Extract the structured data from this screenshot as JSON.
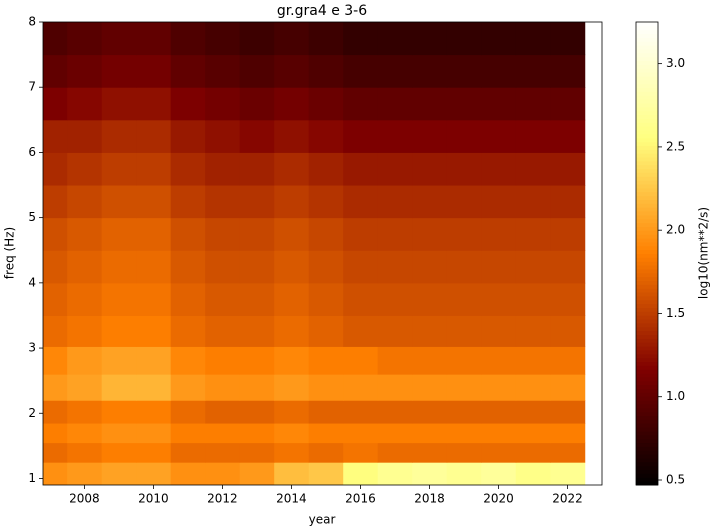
{
  "chart_data": {
    "type": "heatmap",
    "title": "gr.gra4 e 3-6",
    "x_label": "year",
    "y_label": "freq (Hz)",
    "colorbar_label": "log10(nm**2/s)",
    "colormap": "afmhot",
    "x": [
      2007,
      2008,
      2009,
      2010,
      2011,
      2012,
      2013,
      2014,
      2015,
      2016,
      2017,
      2018,
      2019,
      2020,
      2021,
      2022
    ],
    "y": [
      1.1,
      1.4,
      1.7,
      2.0,
      2.4,
      2.8,
      3.25,
      3.75,
      4.25,
      4.75,
      5.25,
      5.75,
      6.25,
      6.75,
      7.25,
      7.75
    ],
    "values": [
      [
        1.95,
        2.0,
        2.05,
        2.05,
        1.95,
        1.95,
        2.0,
        2.2,
        2.25,
        2.55,
        2.65,
        2.7,
        2.65,
        2.7,
        2.6,
        2.65
      ],
      [
        1.75,
        1.8,
        1.85,
        1.85,
        1.75,
        1.75,
        1.75,
        1.8,
        1.75,
        1.8,
        1.75,
        1.75,
        1.75,
        1.75,
        1.75,
        1.75
      ],
      [
        1.85,
        1.9,
        1.95,
        1.95,
        1.85,
        1.85,
        1.85,
        1.9,
        1.85,
        1.85,
        1.85,
        1.85,
        1.85,
        1.85,
        1.85,
        1.85
      ],
      [
        1.75,
        1.8,
        1.85,
        1.85,
        1.75,
        1.7,
        1.7,
        1.75,
        1.7,
        1.7,
        1.7,
        1.7,
        1.7,
        1.7,
        1.7,
        1.7
      ],
      [
        2.0,
        2.05,
        2.15,
        2.15,
        2.0,
        1.95,
        1.95,
        2.0,
        1.95,
        1.95,
        1.95,
        1.95,
        1.95,
        1.95,
        1.95,
        1.95
      ],
      [
        1.9,
        2.0,
        2.05,
        2.05,
        1.9,
        1.85,
        1.85,
        1.9,
        1.85,
        1.85,
        1.8,
        1.8,
        1.8,
        1.8,
        1.8,
        1.8
      ],
      [
        1.75,
        1.8,
        1.85,
        1.85,
        1.75,
        1.7,
        1.7,
        1.75,
        1.7,
        1.65,
        1.65,
        1.65,
        1.65,
        1.65,
        1.65,
        1.65
      ],
      [
        1.7,
        1.75,
        1.8,
        1.8,
        1.7,
        1.65,
        1.65,
        1.7,
        1.65,
        1.6,
        1.6,
        1.6,
        1.6,
        1.6,
        1.6,
        1.6
      ],
      [
        1.65,
        1.7,
        1.75,
        1.75,
        1.65,
        1.6,
        1.6,
        1.65,
        1.6,
        1.55,
        1.55,
        1.55,
        1.55,
        1.55,
        1.55,
        1.55
      ],
      [
        1.6,
        1.65,
        1.7,
        1.7,
        1.6,
        1.55,
        1.55,
        1.6,
        1.55,
        1.5,
        1.5,
        1.5,
        1.5,
        1.5,
        1.5,
        1.5
      ],
      [
        1.5,
        1.55,
        1.6,
        1.6,
        1.5,
        1.45,
        1.45,
        1.5,
        1.45,
        1.4,
        1.4,
        1.4,
        1.4,
        1.4,
        1.4,
        1.4
      ],
      [
        1.4,
        1.45,
        1.5,
        1.5,
        1.4,
        1.35,
        1.35,
        1.4,
        1.35,
        1.3,
        1.3,
        1.3,
        1.3,
        1.3,
        1.3,
        1.3
      ],
      [
        1.35,
        1.35,
        1.4,
        1.4,
        1.3,
        1.25,
        1.2,
        1.25,
        1.2,
        1.15,
        1.15,
        1.15,
        1.15,
        1.15,
        1.15,
        1.15
      ],
      [
        1.15,
        1.2,
        1.25,
        1.25,
        1.15,
        1.1,
        1.05,
        1.1,
        1.05,
        1.0,
        1.0,
        1.0,
        1.0,
        1.0,
        1.0,
        1.0
      ],
      [
        1.0,
        1.05,
        1.1,
        1.1,
        1.0,
        0.95,
        0.9,
        0.95,
        0.9,
        0.85,
        0.85,
        0.85,
        0.85,
        0.85,
        0.85,
        0.85
      ],
      [
        0.9,
        0.95,
        1.0,
        1.0,
        0.9,
        0.85,
        0.8,
        0.85,
        0.8,
        0.75,
        0.75,
        0.75,
        0.75,
        0.75,
        0.75,
        0.75
      ]
    ],
    "xlim": [
      2006.8,
      2023
    ],
    "ylim": [
      0.9,
      8
    ],
    "xticks": [
      2008,
      2010,
      2012,
      2014,
      2016,
      2018,
      2020,
      2022
    ],
    "yticks": [
      1,
      2,
      3,
      4,
      5,
      6,
      7,
      8
    ],
    "clim": [
      0.47,
      3.25
    ],
    "cticks": [
      0.5,
      {
        "value": 1,
        "label": "1.0"
      },
      1.5,
      {
        "value": 2,
        "label": "2.0"
      },
      2.5,
      {
        "value": 3,
        "label": "3.0"
      }
    ]
  }
}
